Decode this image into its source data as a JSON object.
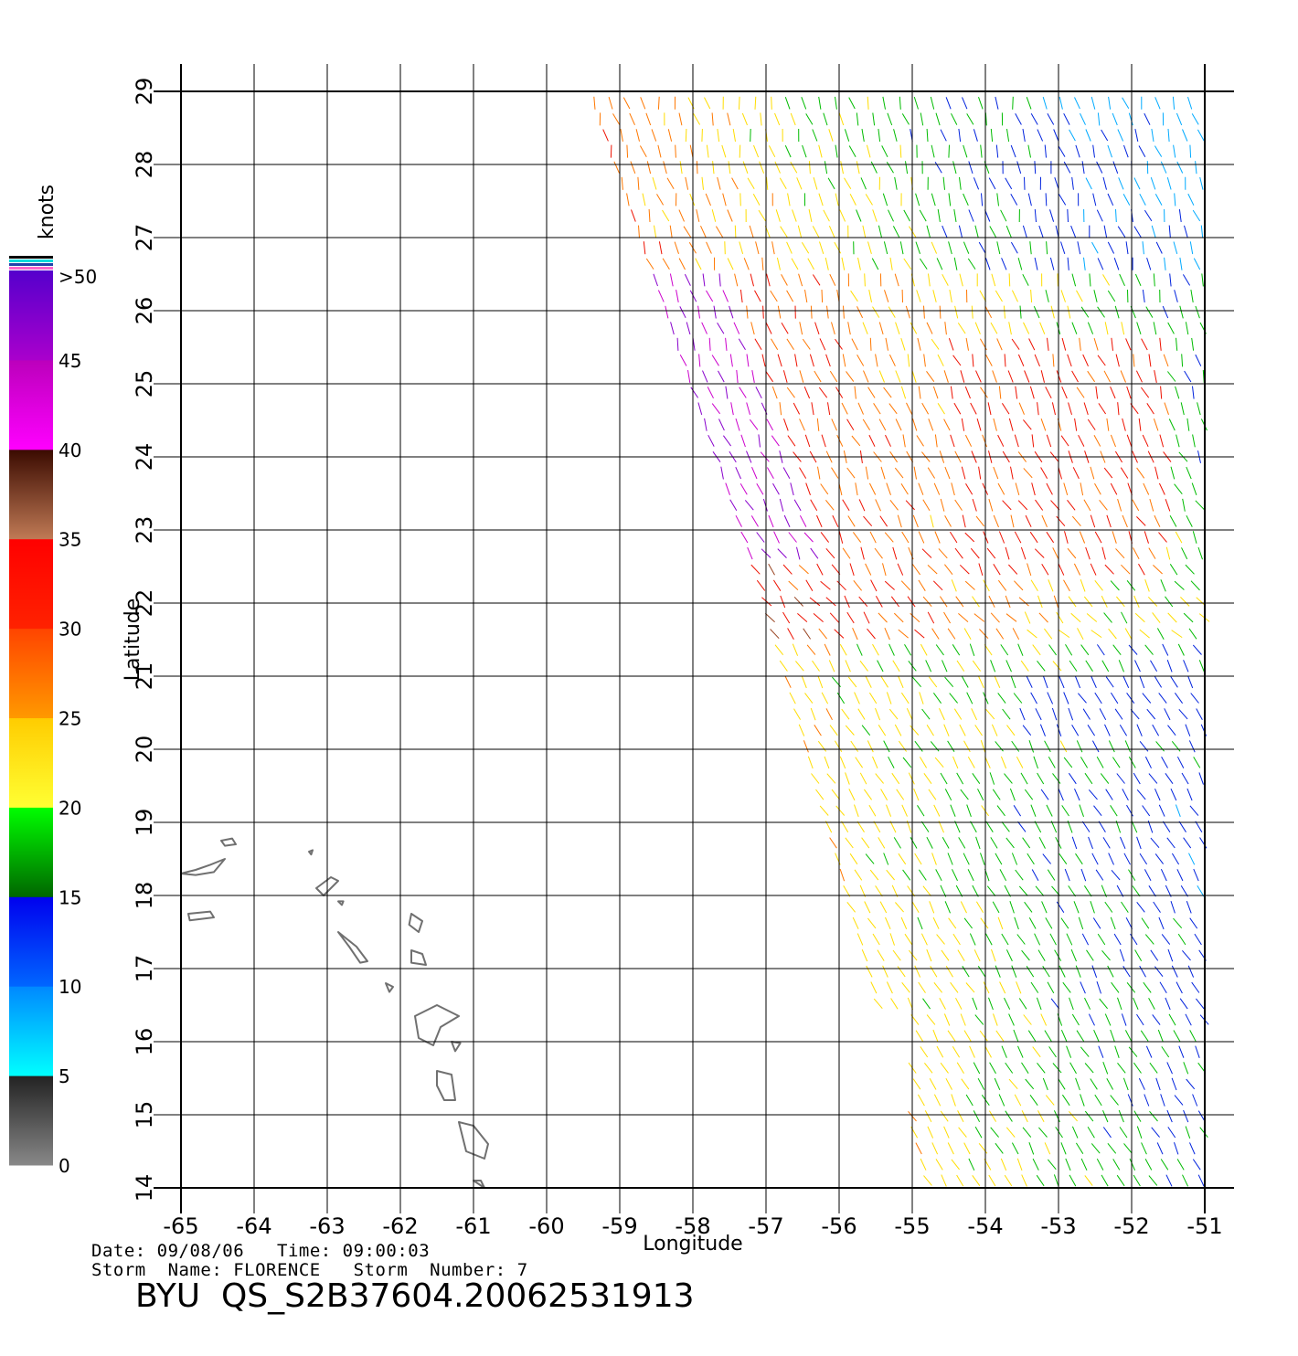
{
  "map": {
    "lon_range": [
      -65,
      -51
    ],
    "lat_range": [
      14,
      29
    ],
    "lon_ticks": [
      "-65",
      "-64",
      "-63",
      "-62",
      "-61",
      "-60",
      "-59",
      "-58",
      "-57",
      "-56",
      "-55",
      "-54",
      "-53",
      "-52",
      "-51"
    ],
    "lat_ticks": [
      "14",
      "15",
      "16",
      "17",
      "18",
      "19",
      "20",
      "21",
      "22",
      "23",
      "24",
      "25",
      "26",
      "27",
      "28",
      "29"
    ],
    "x_label": "Longitude",
    "y_label": "Latitude",
    "grid": true
  },
  "colorbar": {
    "unit_label": "knots",
    "labels": [
      "0",
      "5",
      "10",
      "15",
      "20",
      "25",
      "30",
      "35",
      "40",
      "45",
      ">50"
    ],
    "range_knots": [
      0,
      50
    ]
  },
  "colors": {
    "speed_bands": [
      {
        "min": 0,
        "max": 5,
        "color": "#555555"
      },
      {
        "min": 5,
        "max": 10,
        "color": "#00aaff"
      },
      {
        "min": 10,
        "max": 15,
        "color": "#0022dd"
      },
      {
        "min": 15,
        "max": 20,
        "color": "#00bb00"
      },
      {
        "min": 20,
        "max": 25,
        "color": "#ffdd00"
      },
      {
        "min": 25,
        "max": 30,
        "color": "#ff7700"
      },
      {
        "min": 30,
        "max": 35,
        "color": "#ee1100"
      },
      {
        "min": 35,
        "max": 40,
        "color": "#994422"
      },
      {
        "min": 40,
        "max": 45,
        "color": "#cc00cc"
      },
      {
        "min": 45,
        "max": 50,
        "color": "#8800cc"
      }
    ],
    "land_outline": "#707070",
    "grid": "#000000"
  },
  "footer": {
    "date_label": "Date:",
    "date_value": "09/08/06",
    "time_label": "Time:",
    "time_value": "09:00:03",
    "storm_name_label": "Storm  Name:",
    "storm_name_value": "FLORENCE",
    "storm_number_label": "Storm  Number:",
    "storm_number_value": "7",
    "product_id": "BYU  QS_S2B37604.20062531913"
  }
}
